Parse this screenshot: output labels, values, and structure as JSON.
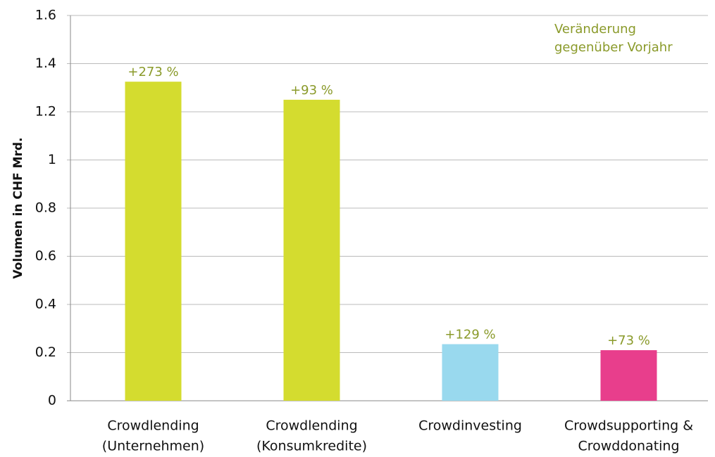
{
  "chart_data": {
    "type": "bar",
    "ylabel": "Volumen in CHF Mrd.",
    "note": [
      "Veränderung",
      "gegenüber Vorjahr"
    ],
    "categories": [
      [
        "Crowdlending",
        "(Unternehmen)"
      ],
      [
        "Crowdlending",
        "(Konsumkredite)"
      ],
      [
        "Crowdinvesting"
      ],
      [
        "Crowdsupporting &",
        "Crowddonating"
      ]
    ],
    "values": [
      1.325,
      1.25,
      0.235,
      0.21
    ],
    "change_labels": [
      "+273 %",
      "+93 %",
      "+129 %",
      "+73 %"
    ],
    "colors": [
      "#d4dc2f",
      "#d4dc2f",
      "#99d9ee",
      "#e83e8c"
    ],
    "ylim": [
      0,
      1.6
    ],
    "yticks": [
      0,
      0.2,
      0.4,
      0.6,
      0.8,
      1,
      1.2,
      1.4,
      1.6
    ],
    "grid": true
  }
}
